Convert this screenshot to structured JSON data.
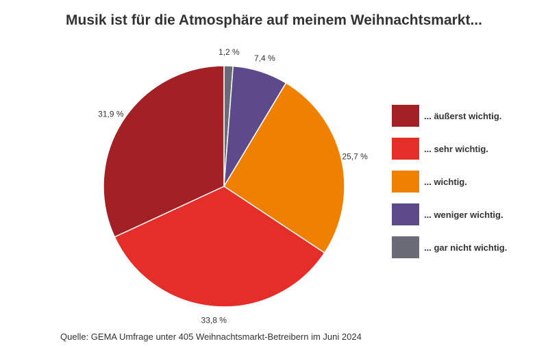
{
  "chart_data": {
    "type": "pie",
    "title": "Musik ist für die Atmosphäre auf meinem Weihnachtsmarkt...",
    "start": "top",
    "direction": "clockwise",
    "slices": [
      {
        "label": "... gar nicht wichtig.",
        "value": 1.2,
        "display": "1,2 %",
        "color": "#6b6b78"
      },
      {
        "label": "... weniger wichtig.",
        "value": 7.4,
        "display": "7,4 %",
        "color": "#5d4a8a"
      },
      {
        "label": "... wichtig.",
        "value": 25.7,
        "display": "25,7 %",
        "color": "#f08000"
      },
      {
        "label": "... sehr wichtig.",
        "value": 33.8,
        "display": "33,8 %",
        "color": "#e52d2a"
      },
      {
        "label": "... äußerst wichtig.",
        "value": 31.9,
        "display": "31,9 %",
        "color": "#a32124"
      }
    ],
    "legend_order": [
      4,
      3,
      2,
      1,
      0
    ],
    "legend_position": "right"
  },
  "source": "Quelle: GEMA Umfrage unter 405 Weihnachtsmarkt-Betreibern im Juni 2024"
}
